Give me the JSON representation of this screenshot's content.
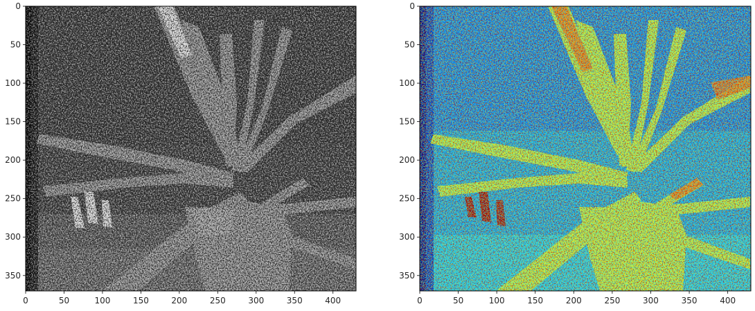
{
  "figure": {
    "panels": [
      {
        "id": "left",
        "colormap": "gray",
        "description_colors": [
          "#0a0a0a",
          "#595959",
          "#8a8a8a",
          "#d8d8d8",
          "#ffffff"
        ],
        "x_ticks": [
          "0",
          "50",
          "100",
          "150",
          "200",
          "250",
          "300",
          "350",
          "400"
        ],
        "y_ticks": [
          "0",
          "50",
          "100",
          "150",
          "200",
          "250",
          "300",
          "350"
        ]
      },
      {
        "id": "right",
        "colormap": "jet",
        "description_colors": [
          "#00008f",
          "#0b5fe6",
          "#1ec8f0",
          "#c8f03c",
          "#f5e61e",
          "#ff6a00",
          "#a00000"
        ],
        "x_ticks": [
          "0",
          "50",
          "100",
          "150",
          "200",
          "250",
          "300",
          "350",
          "400"
        ],
        "y_ticks": [
          "0",
          "50",
          "100",
          "150",
          "200",
          "250",
          "300",
          "350"
        ]
      }
    ],
    "data_extent": {
      "x": [
        0,
        430
      ],
      "y": [
        0,
        370
      ]
    }
  }
}
